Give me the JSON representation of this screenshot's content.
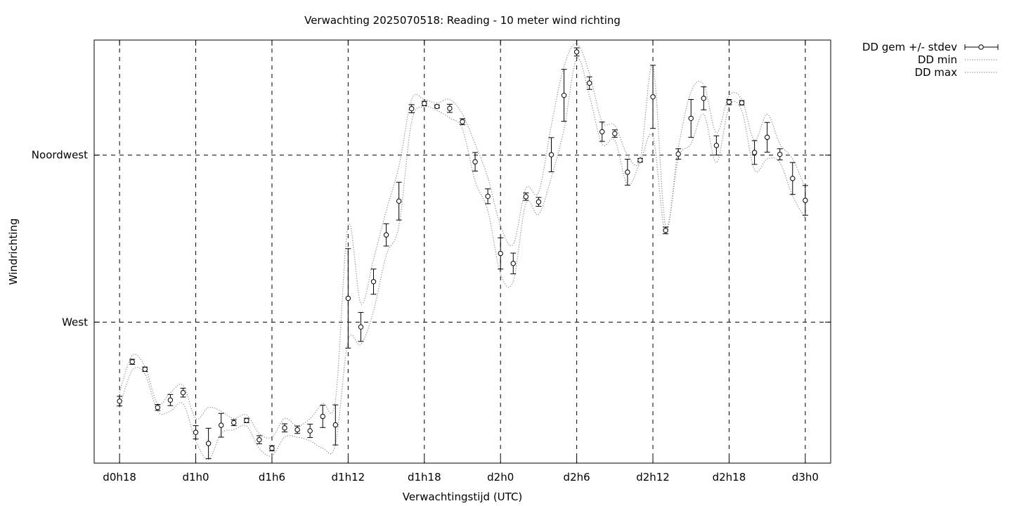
{
  "chart_data": {
    "type": "scatter",
    "title": "Verwachting 2025070518: Reading - 10 meter wind richting",
    "xlabel": "Verwachtingstijd (UTC)",
    "ylabel": "Windrichting",
    "x_unit": "hours since d0h0",
    "xlim": [
      16,
      74
    ],
    "ylim": [
      232,
      346
    ],
    "x_ticks": [
      {
        "x": 18,
        "label": "d0h18"
      },
      {
        "x": 24,
        "label": "d1h0"
      },
      {
        "x": 30,
        "label": "d1h6"
      },
      {
        "x": 36,
        "label": "d1h12"
      },
      {
        "x": 42,
        "label": "d1h18"
      },
      {
        "x": 48,
        "label": "d2h0"
      },
      {
        "x": 54,
        "label": "d2h6"
      },
      {
        "x": 60,
        "label": "d2h12"
      },
      {
        "x": 66,
        "label": "d2h18"
      },
      {
        "x": 72,
        "label": "d3h0"
      }
    ],
    "y_ticks": [
      {
        "y": 270,
        "label": "West"
      },
      {
        "y": 315,
        "label": "Noordwest"
      }
    ],
    "grid": true,
    "legend_position": "outside-top-right",
    "legend": [
      {
        "label": "DD gem +/- stdev",
        "style": "errorbar"
      },
      {
        "label": "DD min",
        "style": "dotted"
      },
      {
        "label": "DD max",
        "style": "dotted"
      }
    ],
    "x": [
      18,
      19,
      20,
      21,
      22,
      23,
      24,
      25,
      26,
      27,
      28,
      29,
      30,
      31,
      32,
      33,
      34,
      35,
      36,
      37,
      38,
      39,
      40,
      41,
      42,
      43,
      44,
      45,
      46,
      47,
      48,
      49,
      50,
      51,
      52,
      53,
      54,
      55,
      56,
      57,
      58,
      59,
      60,
      61,
      62,
      63,
      64,
      65,
      66,
      67,
      68,
      69,
      70,
      71,
      72
    ],
    "series": [
      {
        "name": "DD gem +/- stdev",
        "mean": [
          248.7,
          259.3,
          257.3,
          247.0,
          249.0,
          251.0,
          240.3,
          237.3,
          242.2,
          242.9,
          243.5,
          238.3,
          236.0,
          241.5,
          241.0,
          240.7,
          244.6,
          242.3,
          276.4,
          268.7,
          280.9,
          293.5,
          302.6,
          327.5,
          328.9,
          328.1,
          327.6,
          324.0,
          313.2,
          303.9,
          288.5,
          285.8,
          303.8,
          302.4,
          315.1,
          331.1,
          342.8,
          334.4,
          321.3,
          320.8,
          310.4,
          313.6,
          330.7,
          294.7,
          315.3,
          324.9,
          330.3,
          317.6,
          329.3,
          329.1,
          315.7,
          319.8,
          315.2,
          308.7,
          302.8
        ],
        "sd": [
          1.3,
          0.7,
          0.6,
          0.8,
          1.5,
          1.2,
          1.8,
          4.1,
          3.2,
          0.8,
          0.6,
          1.1,
          0.7,
          1.1,
          1.0,
          1.8,
          3.0,
          5.4,
          13.4,
          3.9,
          3.4,
          3.0,
          5.1,
          1.1,
          0.6,
          0.4,
          1.1,
          0.8,
          2.5,
          2.0,
          4.2,
          2.8,
          1.0,
          1.2,
          4.6,
          7.0,
          1.1,
          1.7,
          2.6,
          1.0,
          3.5,
          0.5,
          8.5,
          0.9,
          1.4,
          5.1,
          3.1,
          2.6,
          0.7,
          0.6,
          3.2,
          4.0,
          1.5,
          4.3,
          4.0
        ]
      },
      {
        "name": "DD min",
        "values": [
          247,
          257,
          256,
          246,
          246,
          248,
          238,
          233,
          240,
          241,
          242,
          236,
          234,
          239,
          239,
          238,
          236,
          237,
          265,
          264,
          273,
          288,
          296,
          324,
          328,
          327,
          325,
          322,
          308,
          300,
          283,
          281,
          302,
          299,
          309,
          322,
          341,
          331,
          318,
          319,
          307,
          313,
          320,
          294,
          314,
          318,
          326,
          313,
          328,
          327,
          311,
          314,
          313,
          304,
          298
        ]
      },
      {
        "name": "DD max",
        "values": [
          251,
          261,
          258,
          248,
          251,
          253,
          244,
          247,
          246,
          244,
          245,
          240,
          239,
          244,
          242,
          244,
          248,
          249,
          296,
          275,
          287,
          300,
          312,
          330,
          330,
          329,
          330,
          326,
          318,
          309,
          296,
          291,
          306,
          305,
          323,
          339,
          345,
          337,
          324,
          323,
          315,
          314,
          339,
          296,
          317,
          332,
          334,
          321,
          331,
          330,
          319,
          326,
          318,
          314,
          306
        ]
      }
    ]
  }
}
